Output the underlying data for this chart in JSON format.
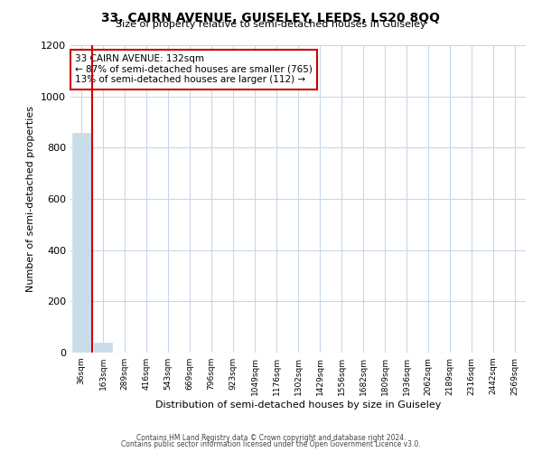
{
  "title": "33, CAIRN AVENUE, GUISELEY, LEEDS, LS20 8QQ",
  "subtitle": "Size of property relative to semi-detached houses in Guiseley",
  "bar_values": [
    857,
    40,
    0,
    0,
    0,
    0,
    0,
    0,
    0,
    0,
    0,
    0,
    0,
    0,
    0,
    0,
    0,
    0,
    0,
    0,
    0
  ],
  "bar_labels": [
    "36sqm",
    "163sqm",
    "289sqm",
    "416sqm",
    "543sqm",
    "669sqm",
    "796sqm",
    "923sqm",
    "1049sqm",
    "1176sqm",
    "1302sqm",
    "1429sqm",
    "1556sqm",
    "1682sqm",
    "1809sqm",
    "1936sqm",
    "2062sqm",
    "2189sqm",
    "2316sqm",
    "2442sqm",
    "2569sqm"
  ],
  "bar_color": "#c8dcea",
  "property_line_x": 0.5,
  "property_line_color": "#cc0000",
  "annotation_title": "33 CAIRN AVENUE: 132sqm",
  "annotation_line1": "← 87% of semi-detached houses are smaller (765)",
  "annotation_line2": "13% of semi-detached houses are larger (112) →",
  "annotation_box_color": "#cc0000",
  "xlabel": "Distribution of semi-detached houses by size in Guiseley",
  "ylabel": "Number of semi-detached properties",
  "ylim": [
    0,
    1200
  ],
  "yticks": [
    0,
    200,
    400,
    600,
    800,
    1000,
    1200
  ],
  "footer1": "Contains HM Land Registry data © Crown copyright and database right 2024.",
  "footer2": "Contains public sector information licensed under the Open Government Licence v3.0.",
  "background_color": "#ffffff",
  "grid_color": "#c8d8e8"
}
